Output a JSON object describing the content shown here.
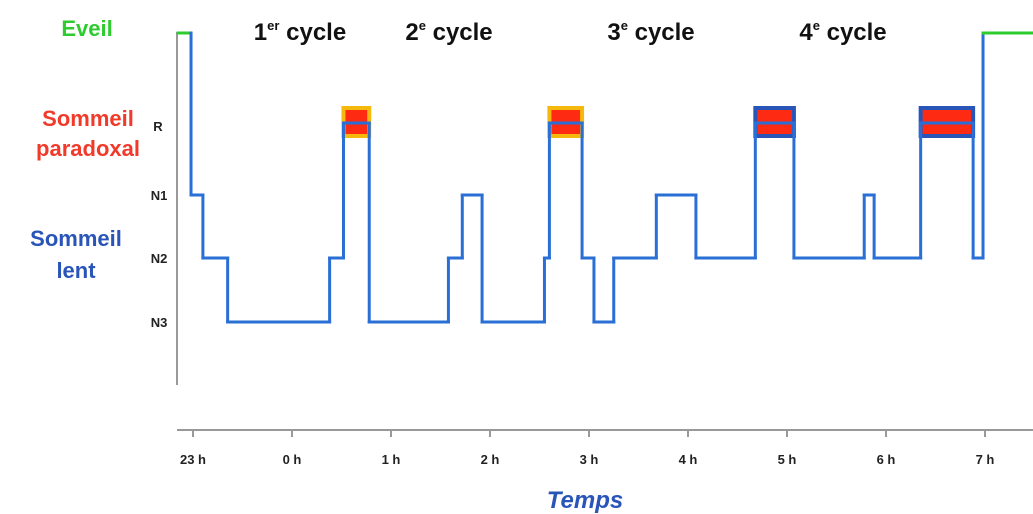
{
  "chart_data": {
    "type": "line",
    "xlabel": "Temps",
    "x_ticks": [
      "23 h",
      "0 h",
      "1 h",
      "2 h",
      "3 h",
      "4 h",
      "5 h",
      "6 h",
      "7 h"
    ],
    "stage_ticks": [
      "R",
      "N1",
      "N2",
      "N3"
    ],
    "categories": [
      {
        "label_lines": [
          "Eveil"
        ],
        "color": "#2ecc2e"
      },
      {
        "label_lines": [
          "Sommeil",
          "paradoxal"
        ],
        "color": "#f23a2a"
      },
      {
        "label_lines": [
          "Sommeil",
          "lent"
        ],
        "color": "#2a55b8"
      }
    ],
    "cycles": [
      {
        "num": "1",
        "sup": "er",
        "word": " cycle"
      },
      {
        "num": "2",
        "sup": "e",
        "word": " cycle"
      },
      {
        "num": "3",
        "sup": "e",
        "word": " cycle"
      },
      {
        "num": "4",
        "sup": "e",
        "word": " cycle"
      }
    ],
    "colors": {
      "eveil": "#2ecc2e",
      "slow_sleep": "#2a6fd6",
      "rem_fill": "#ff2a12",
      "rem_edge_early": "#f5b90e",
      "rem_edge_late": "#2a55b8",
      "axis": "#999999"
    },
    "hypnogram": {
      "stage_levels": {
        "W": 0,
        "R": 1,
        "N1": 2,
        "N2": 3,
        "N3": 4
      },
      "points": [
        [
          -0.15,
          "W"
        ],
        [
          -0.02,
          "W"
        ],
        [
          -0.02,
          "N1"
        ],
        [
          0.1,
          "N1"
        ],
        [
          0.1,
          "N2"
        ],
        [
          0.35,
          "N2"
        ],
        [
          0.35,
          "N3"
        ],
        [
          1.38,
          "N3"
        ],
        [
          1.38,
          "N2"
        ],
        [
          1.52,
          "N2"
        ],
        [
          1.52,
          "R"
        ],
        [
          1.78,
          "R"
        ],
        [
          1.78,
          "N3"
        ],
        [
          2.58,
          "N3"
        ],
        [
          2.58,
          "N2"
        ],
        [
          2.72,
          "N2"
        ],
        [
          2.72,
          "N1"
        ],
        [
          2.92,
          "N1"
        ],
        [
          2.92,
          "N3"
        ],
        [
          3.55,
          "N3"
        ],
        [
          3.55,
          "N2"
        ],
        [
          3.6,
          "N2"
        ],
        [
          3.6,
          "R"
        ],
        [
          3.93,
          "R"
        ],
        [
          3.93,
          "N2"
        ],
        [
          4.05,
          "N2"
        ],
        [
          4.05,
          "N3"
        ],
        [
          4.25,
          "N3"
        ],
        [
          4.25,
          "N2"
        ],
        [
          4.68,
          "N2"
        ],
        [
          4.68,
          "N1"
        ],
        [
          5.08,
          "N1"
        ],
        [
          5.08,
          "N2"
        ],
        [
          5.68,
          "N2"
        ],
        [
          5.68,
          "R"
        ],
        [
          6.07,
          "R"
        ],
        [
          6.07,
          "N2"
        ],
        [
          6.78,
          "N2"
        ],
        [
          6.78,
          "N1"
        ],
        [
          6.88,
          "N1"
        ],
        [
          6.88,
          "N2"
        ],
        [
          7.35,
          "N2"
        ],
        [
          7.35,
          "R"
        ],
        [
          7.88,
          "R"
        ],
        [
          7.88,
          "N2"
        ],
        [
          7.98,
          "N2"
        ],
        [
          7.98,
          "W"
        ],
        [
          8.85,
          "W"
        ]
      ],
      "rem_periods": [
        {
          "start": 1.52,
          "end": 1.78,
          "edge": "early"
        },
        {
          "start": 3.6,
          "end": 3.93,
          "edge": "early"
        },
        {
          "start": 5.68,
          "end": 6.07,
          "edge": "late"
        },
        {
          "start": 7.35,
          "end": 7.88,
          "edge": "late"
        }
      ]
    }
  }
}
